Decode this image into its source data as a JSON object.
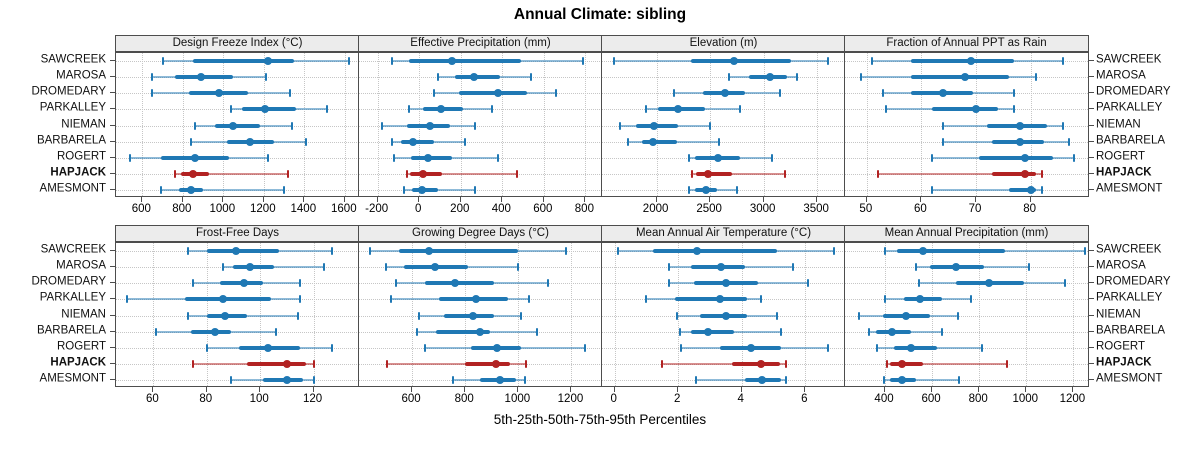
{
  "title": "Annual Climate: sibling",
  "xlabel": "5th-25th-50th-75th-95th Percentiles",
  "colors": {
    "normal": "#1F78B4",
    "normal_light": "rgba(31,120,180,0.5)",
    "highlight": "#B22222",
    "highlight_light": "rgba(178,34,34,0.5)",
    "strip_bg": "#ececec",
    "grid": "#c6c6c6",
    "border": "#4d4d4d"
  },
  "chart_data": {
    "type": "dotplot-percentile-ranges",
    "percentiles": [
      5,
      25,
      50,
      75,
      95
    ],
    "legend_note": "5th-25th-50th-75th-95th Percentiles",
    "grid": "dotted",
    "highlight": "HAPJACK",
    "rows": [
      "SAWCREEK",
      "MAROSA",
      "DROMEDARY",
      "PARKALLEY",
      "NIEMAN",
      "BARBARELA",
      "ROGERT",
      "HAPJACK",
      "AMESMONT"
    ],
    "panels": [
      {
        "id": "design-freeze-index",
        "title": "Design Freeze Index (°C)",
        "xlim": [
          470,
          1670
        ],
        "ticks": [
          600,
          800,
          1000,
          1200,
          1400,
          1600
        ],
        "values": {
          "SAWCREEK": [
            700,
            850,
            1220,
            1350,
            1620
          ],
          "MAROSA": [
            650,
            760,
            890,
            1050,
            1210
          ],
          "DROMEDARY": [
            650,
            830,
            980,
            1120,
            1330
          ],
          "PARKALLEY": [
            1040,
            1090,
            1205,
            1360,
            1510
          ],
          "NIEMAN": [
            860,
            960,
            1050,
            1180,
            1340
          ],
          "BARBARELA": [
            840,
            1020,
            1130,
            1250,
            1410
          ],
          "ROGERT": [
            540,
            690,
            860,
            1030,
            1220
          ],
          "HAPJACK": [
            760,
            790,
            850,
            930,
            1320
          ],
          "AMESMONT": [
            690,
            780,
            840,
            900,
            1300
          ]
        }
      },
      {
        "id": "effective-precipitation",
        "title": "Effective Precipitation (mm)",
        "xlim": [
          -290,
          880
        ],
        "ticks": [
          -200,
          0,
          200,
          400,
          600,
          800
        ],
        "values": {
          "SAWCREEK": [
            -130,
            -50,
            160,
            490,
            790
          ],
          "MAROSA": [
            90,
            170,
            265,
            390,
            540
          ],
          "DROMEDARY": [
            70,
            190,
            380,
            520,
            660
          ],
          "PARKALLEY": [
            -50,
            20,
            105,
            210,
            350
          ],
          "NIEMAN": [
            -180,
            -60,
            50,
            150,
            270
          ],
          "BARBARELA": [
            -130,
            -90,
            -30,
            70,
            220
          ],
          "ROGERT": [
            -120,
            -40,
            40,
            160,
            380
          ],
          "HAPJACK": [
            -60,
            -45,
            20,
            110,
            470
          ],
          "AMESMONT": [
            -75,
            -35,
            15,
            90,
            270
          ]
        }
      },
      {
        "id": "elevation",
        "title": "Elevation (m)",
        "xlim": [
          1490,
          3760
        ],
        "ticks": [
          2000,
          2500,
          3000,
          3500
        ],
        "values": {
          "SAWCREEK": [
            1600,
            2320,
            2720,
            3260,
            3600
          ],
          "MAROSA": [
            2680,
            2860,
            3060,
            3220,
            3310
          ],
          "DROMEDARY": [
            2160,
            2430,
            2640,
            2830,
            3150
          ],
          "PARKALLEY": [
            1900,
            2010,
            2200,
            2450,
            2780
          ],
          "NIEMAN": [
            1660,
            1810,
            1980,
            2200,
            2500
          ],
          "BARBARELA": [
            1730,
            1860,
            1970,
            2190,
            2580
          ],
          "ROGERT": [
            2300,
            2360,
            2570,
            2780,
            3080
          ],
          "HAPJACK": [
            2330,
            2365,
            2480,
            2700,
            3200
          ],
          "AMESMONT": [
            2300,
            2360,
            2460,
            2560,
            2750
          ]
        }
      },
      {
        "id": "fraction-ppt-rain",
        "title": "Fraction of Annual PPT as Rain",
        "xlim": [
          46,
          90.5
        ],
        "ticks": [
          50,
          60,
          70,
          80
        ],
        "values": {
          "SAWCREEK": [
            51,
            58,
            69,
            77,
            86
          ],
          "MAROSA": [
            49,
            58,
            68,
            76,
            81
          ],
          "DROMEDARY": [
            53,
            58,
            64,
            69.5,
            77
          ],
          "PARKALLEY": [
            53.5,
            62,
            70,
            74,
            77
          ],
          "NIEMAN": [
            64,
            72,
            78,
            83,
            86
          ],
          "BARBARELA": [
            64,
            73,
            78,
            82.5,
            87
          ],
          "ROGERT": [
            62,
            70.5,
            79,
            84,
            88
          ],
          "HAPJACK": [
            52,
            73,
            79,
            81,
            82
          ],
          "AMESMONT": [
            62,
            76,
            80,
            81,
            82
          ]
        }
      },
      {
        "id": "frost-free-days",
        "title": "Frost-Free Days",
        "xlim": [
          46,
          137
        ],
        "ticks": [
          60,
          80,
          100,
          120
        ],
        "values": {
          "SAWCREEK": [
            73,
            80,
            91,
            107,
            127
          ],
          "MAROSA": [
            86,
            90,
            96,
            105,
            124
          ],
          "DROMEDARY": [
            75,
            85,
            94,
            101,
            115
          ],
          "PARKALLEY": [
            50,
            72,
            86,
            104,
            115
          ],
          "NIEMAN": [
            73,
            80,
            87,
            95,
            114
          ],
          "BARBARELA": [
            61,
            74,
            83,
            89,
            106
          ],
          "ROGERT": [
            80,
            92,
            103,
            115,
            127
          ],
          "HAPJACK": [
            75,
            95,
            110,
            117,
            120
          ],
          "AMESMONT": [
            89,
            101,
            110,
            116,
            120
          ]
        }
      },
      {
        "id": "growing-degree-days",
        "title": "Growing Degree Days (°C)",
        "xlim": [
          400,
          1315
        ],
        "ticks": [
          600,
          800,
          1000,
          1200
        ],
        "values": {
          "SAWCREEK": [
            440,
            550,
            665,
            1000,
            1180
          ],
          "MAROSA": [
            500,
            570,
            685,
            810,
            1000
          ],
          "DROMEDARY": [
            540,
            650,
            760,
            910,
            1110
          ],
          "PARKALLEY": [
            520,
            700,
            840,
            960,
            1040
          ],
          "NIEMAN": [
            625,
            720,
            830,
            910,
            1010
          ],
          "BARBARELA": [
            620,
            690,
            855,
            895,
            1070
          ],
          "ROGERT": [
            650,
            820,
            920,
            1010,
            1250
          ],
          "HAPJACK": [
            505,
            800,
            915,
            970,
            1030
          ],
          "AMESMONT": [
            755,
            855,
            930,
            990,
            1025
          ]
        }
      },
      {
        "id": "mean-annual-air-temperature",
        "title": "Mean Annual Air Temperature (°C)",
        "xlim": [
          -0.4,
          7.25
        ],
        "ticks": [
          0,
          2,
          4,
          6
        ],
        "values": {
          "SAWCREEK": [
            0.1,
            1.2,
            2.6,
            5.1,
            6.9
          ],
          "MAROSA": [
            1.7,
            2.4,
            3.35,
            4.1,
            5.6
          ],
          "DROMEDARY": [
            1.7,
            2.5,
            3.5,
            4.5,
            6.1
          ],
          "PARKALLEY": [
            1.0,
            1.9,
            3.3,
            4.15,
            4.6
          ],
          "NIEMAN": [
            1.95,
            2.7,
            3.5,
            4.15,
            5.1
          ],
          "BARBARELA": [
            2.05,
            2.4,
            2.95,
            3.75,
            5.25
          ],
          "ROGERT": [
            2.1,
            3.3,
            4.3,
            5.25,
            6.7
          ],
          "HAPJACK": [
            1.5,
            3.7,
            4.6,
            5.2,
            5.4
          ],
          "AMESMONT": [
            2.55,
            4.1,
            4.65,
            5.25,
            5.4
          ]
        }
      },
      {
        "id": "mean-annual-precipitation",
        "title": "Mean Annual Precipitation (mm)",
        "xlim": [
          230,
          1262
        ],
        "ticks": [
          400,
          600,
          800,
          1000,
          1200
        ],
        "values": {
          "SAWCREEK": [
            400,
            450,
            560,
            910,
            1250
          ],
          "MAROSA": [
            530,
            590,
            700,
            820,
            1010
          ],
          "DROMEDARY": [
            545,
            700,
            840,
            990,
            1165
          ],
          "PARKALLEY": [
            400,
            480,
            550,
            640,
            765
          ],
          "NIEMAN": [
            290,
            390,
            490,
            590,
            710
          ],
          "BARBARELA": [
            330,
            360,
            430,
            510,
            640
          ],
          "ROGERT": [
            365,
            440,
            510,
            620,
            810
          ],
          "HAPJACK": [
            410,
            420,
            470,
            560,
            920
          ],
          "AMESMONT": [
            395,
            420,
            470,
            530,
            715
          ]
        }
      }
    ]
  }
}
